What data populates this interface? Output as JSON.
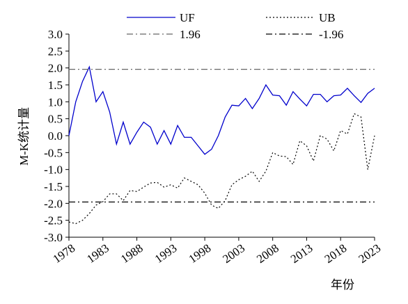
{
  "chart_data": {
    "type": "line",
    "title": "",
    "xlabel": "年份",
    "ylabel": "M-K统计量",
    "xlim": [
      1978,
      2023
    ],
    "ylim": [
      -3.0,
      3.0
    ],
    "y_ticks": [
      "3.0",
      "2.5",
      "2.0",
      "1.5",
      "1.0",
      "0.5",
      "0.0",
      "-0.5",
      "-1.0",
      "-1.5",
      "-2.0",
      "-2.5",
      "-3.0"
    ],
    "x_ticks": [
      "1978",
      "1983",
      "1988",
      "1993",
      "1998",
      "2003",
      "2008",
      "2013",
      "2018",
      "2023"
    ],
    "x": [
      1978,
      1979,
      1980,
      1981,
      1982,
      1983,
      1984,
      1985,
      1986,
      1987,
      1988,
      1989,
      1990,
      1991,
      1992,
      1993,
      1994,
      1995,
      1996,
      1997,
      1998,
      1999,
      2000,
      2001,
      2002,
      2003,
      2004,
      2005,
      2006,
      2007,
      2008,
      2009,
      2010,
      2011,
      2012,
      2013,
      2014,
      2015,
      2016,
      2017,
      2018,
      2019,
      2020,
      2021,
      2022,
      2023
    ],
    "series": [
      {
        "name": "UF",
        "color": "#0000cc",
        "style": "solid",
        "values": [
          0.0,
          1.0,
          1.6,
          2.03,
          1.0,
          1.3,
          0.7,
          -0.25,
          0.4,
          -0.25,
          0.1,
          0.4,
          0.25,
          -0.25,
          0.15,
          -0.25,
          0.3,
          -0.05,
          -0.05,
          -0.3,
          -0.55,
          -0.4,
          0.0,
          0.55,
          0.9,
          0.88,
          1.1,
          0.8,
          1.1,
          1.5,
          1.2,
          1.18,
          0.9,
          1.3,
          1.08,
          0.88,
          1.22,
          1.22,
          1.0,
          1.18,
          1.2,
          1.4,
          1.18,
          0.98,
          1.25,
          1.4
        ]
      },
      {
        "name": "UB",
        "color": "#000000",
        "style": "dotted",
        "values": [
          -2.55,
          -2.6,
          -2.5,
          -2.3,
          -2.05,
          -1.95,
          -1.72,
          -1.72,
          -1.92,
          -1.62,
          -1.65,
          -1.52,
          -1.4,
          -1.38,
          -1.52,
          -1.45,
          -1.55,
          -1.25,
          -1.35,
          -1.45,
          -1.7,
          -2.05,
          -2.15,
          -1.92,
          -1.45,
          -1.3,
          -1.2,
          -1.05,
          -1.35,
          -1.05,
          -0.5,
          -0.6,
          -0.62,
          -0.85,
          -0.15,
          -0.3,
          -0.75,
          0.0,
          -0.1,
          -0.45,
          0.15,
          0.05,
          0.65,
          0.55,
          -1.0,
          0.0
        ]
      },
      {
        "name": "1.96",
        "color": "#666666",
        "style": "dashdot",
        "constant": 1.96
      },
      {
        "name": "-1.96",
        "color": "#000000",
        "style": "dashdot",
        "constant": -1.96
      }
    ],
    "legend": [
      {
        "label": "UF",
        "series": 0
      },
      {
        "label": "UB",
        "series": 1
      },
      {
        "label": "1.96",
        "series": 2
      },
      {
        "label": "-1.96",
        "series": 3
      }
    ],
    "legend_position": "top",
    "grid": false
  }
}
